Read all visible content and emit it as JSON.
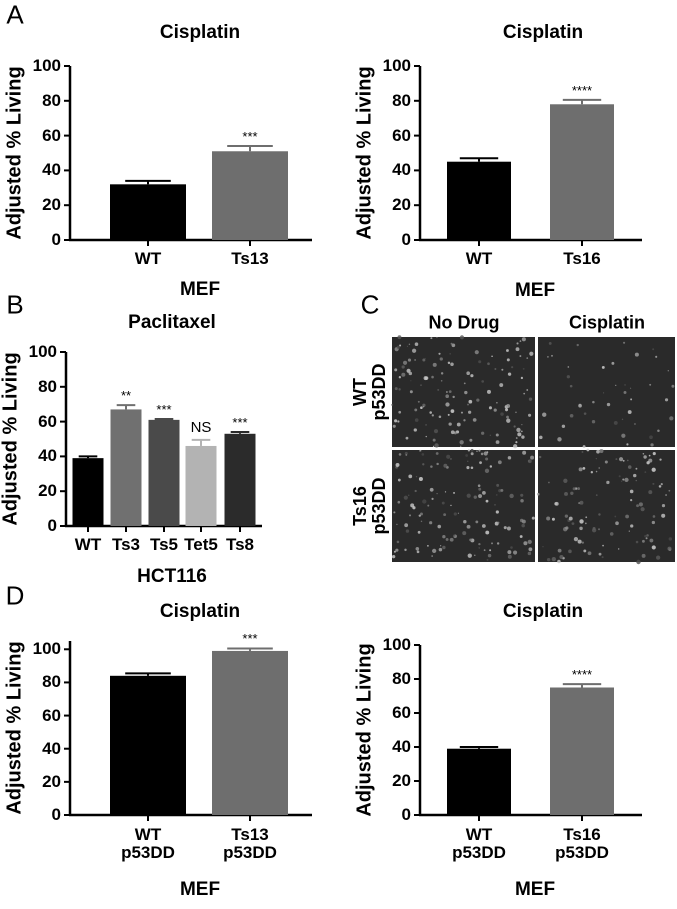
{
  "panel_labels": [
    "A",
    "B",
    "C",
    "D"
  ],
  "chart_data": [
    {
      "type": "bar",
      "title": "Cisplatin",
      "y_label": "Adjusted % Living",
      "x_label": "MEF",
      "categories": [
        "WT",
        "Ts13"
      ],
      "values": [
        32,
        51
      ],
      "errors": [
        2,
        3
      ],
      "colors": [
        "#000000",
        "#6e6e6e"
      ],
      "annotations": [
        null,
        "***"
      ],
      "ylim": [
        0,
        100
      ],
      "yticks": [
        0,
        20,
        40,
        60,
        80,
        100
      ]
    },
    {
      "type": "bar",
      "title": "Cisplatin",
      "y_label": "Adjusted % Living",
      "x_label": "MEF",
      "categories": [
        "WT",
        "Ts16"
      ],
      "values": [
        45,
        78
      ],
      "errors": [
        2,
        2.5
      ],
      "colors": [
        "#000000",
        "#6e6e6e"
      ],
      "annotations": [
        null,
        "****"
      ],
      "ylim": [
        0,
        100
      ],
      "yticks": [
        0,
        20,
        40,
        60,
        80,
        100
      ]
    },
    {
      "type": "bar",
      "title": "Paclitaxel",
      "y_label": "Adjusted % Living",
      "x_label": "HCT116",
      "categories": [
        "WT",
        "Ts3",
        "Ts5",
        "Tet5",
        "Ts8"
      ],
      "values": [
        39,
        67,
        61,
        46,
        53
      ],
      "errors": [
        1,
        2.5,
        0.5,
        3.5,
        1
      ],
      "colors": [
        "#000000",
        "#707070",
        "#4a4a4a",
        "#b3b3b3",
        "#2b2b2b"
      ],
      "annotations": [
        null,
        "**",
        "***",
        "NS",
        "***"
      ],
      "ylim": [
        0,
        100
      ],
      "yticks": [
        0,
        20,
        40,
        60,
        80,
        100
      ]
    },
    {
      "type": "bar",
      "title": "Cisplatin",
      "y_label": "Adjusted % Living",
      "x_label": "MEF",
      "categories": [
        "WT\np53DD",
        "Ts13\np53DD"
      ],
      "values": [
        84,
        99
      ],
      "errors": [
        1.5,
        1.5
      ],
      "colors": [
        "#000000",
        "#6e6e6e"
      ],
      "annotations": [
        null,
        "***"
      ],
      "ylim": [
        0,
        105
      ],
      "yticks": [
        0,
        20,
        40,
        60,
        80,
        100
      ]
    },
    {
      "type": "bar",
      "title": "Cisplatin",
      "y_label": "Adjusted % Living",
      "x_label": "MEF",
      "categories": [
        "WT\np53DD",
        "Ts16\np53DD"
      ],
      "values": [
        39,
        75
      ],
      "errors": [
        1,
        2
      ],
      "colors": [
        "#000000",
        "#6e6e6e"
      ],
      "annotations": [
        null,
        "****"
      ],
      "ylim": [
        0,
        100
      ],
      "yticks": [
        0,
        20,
        40,
        60,
        80,
        100
      ]
    }
  ],
  "image_panel": {
    "column_labels": [
      "No Drug",
      "Cisplatin"
    ],
    "row_labels": [
      "WT\np53DD",
      "Ts16\np53DD"
    ]
  }
}
